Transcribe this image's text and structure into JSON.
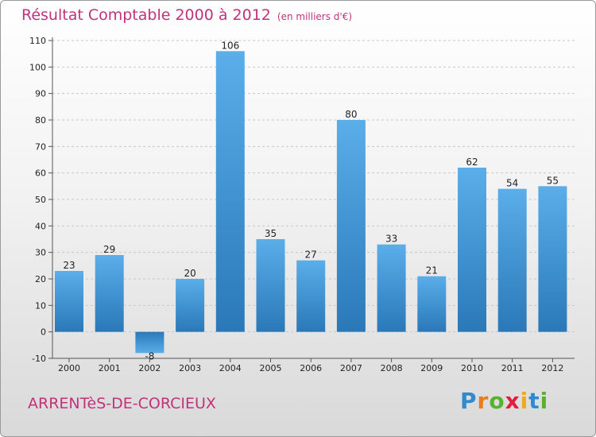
{
  "header": {
    "title": "Résultat Comptable 2000 à 2012",
    "subtitle": "(en milliers d'€)"
  },
  "footer": {
    "place": "ARRENTèS-DE-CORCIEUX",
    "logo": [
      "P",
      "r",
      "o",
      "x",
      "i",
      "t",
      "i"
    ]
  },
  "colors": {
    "title": "#c0327c",
    "bar_light": "#5aaeea",
    "bar_dark": "#2a78b8",
    "logo": [
      "#2e8bd0",
      "#e87c1e",
      "#59b22f",
      "#e01f3d",
      "#f0a81e",
      "#2e8bd0",
      "#59b22f"
    ]
  },
  "chart_data": {
    "type": "bar",
    "title": "Résultat Comptable 2000 à 2012",
    "categories": [
      "2000",
      "2001",
      "2002",
      "2003",
      "2004",
      "2005",
      "2006",
      "2007",
      "2008",
      "2009",
      "2010",
      "2011",
      "2012"
    ],
    "values": [
      23,
      29,
      -8,
      20,
      106,
      35,
      27,
      80,
      33,
      21,
      62,
      54,
      55
    ],
    "value_labels": [
      "23",
      "29",
      "-8",
      "20",
      "106",
      "35",
      "27",
      "80",
      "33",
      "21",
      "62",
      "54",
      "55"
    ],
    "yticks": [
      -10,
      0,
      10,
      20,
      30,
      40,
      50,
      60,
      70,
      80,
      90,
      100,
      110
    ],
    "ylim": [
      -10,
      110
    ],
    "xlabel": "",
    "ylabel": ""
  }
}
